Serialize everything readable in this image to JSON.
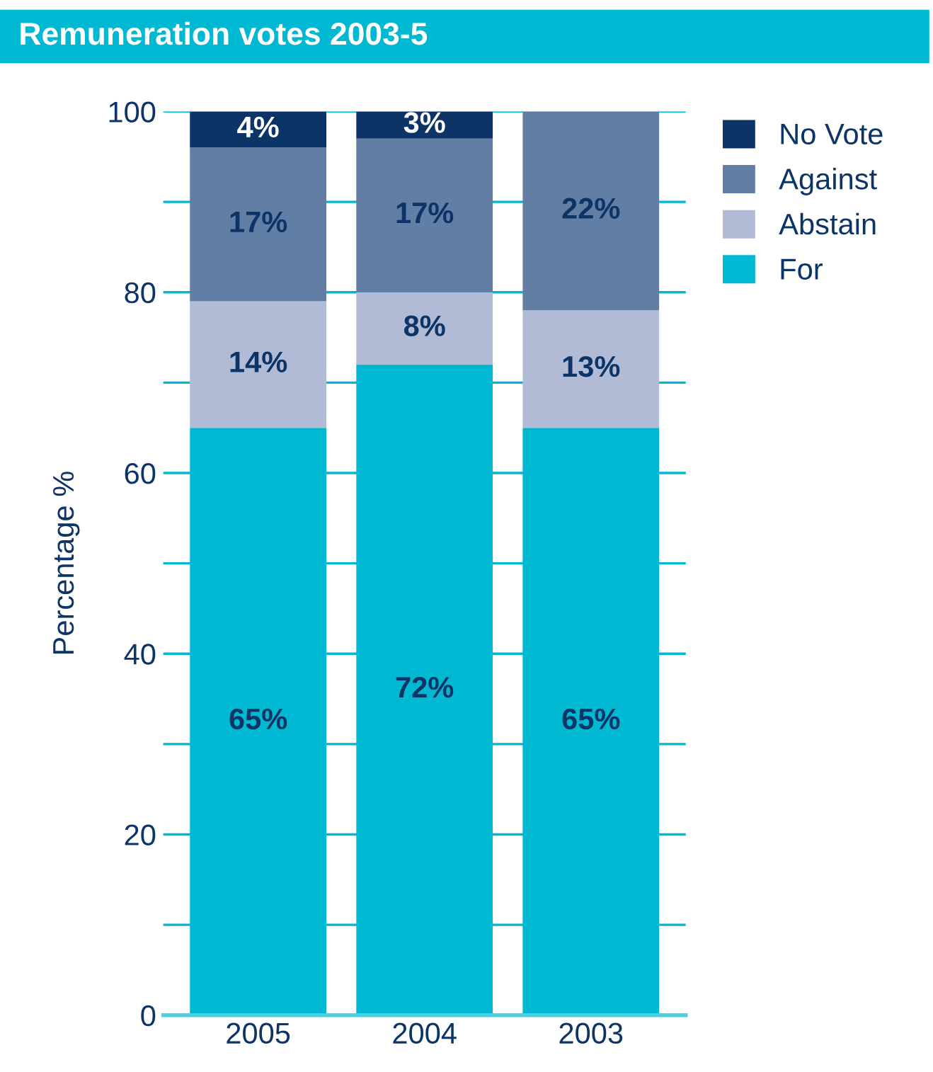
{
  "chart_data": {
    "type": "bar",
    "title": "Remuneration votes 2003-5",
    "ylabel": "Percentage %",
    "categories": [
      "2005",
      "2004",
      "2003"
    ],
    "stacked": true,
    "series": [
      {
        "name": "For",
        "color": "#00b8d1",
        "values": [
          65,
          72,
          65
        ],
        "value_labels": [
          "65%",
          "72%",
          "65%"
        ]
      },
      {
        "name": "Abstain",
        "color": "#b1bbd5",
        "values": [
          14,
          8,
          13
        ],
        "value_labels": [
          "14%",
          "8%",
          "13%"
        ]
      },
      {
        "name": "Against",
        "color": "#627ea4",
        "values": [
          17,
          17,
          22
        ],
        "value_labels": [
          "17%",
          "17%",
          "22%"
        ]
      },
      {
        "name": "No Vote",
        "color": "#0d3466",
        "values": [
          4,
          3,
          0
        ],
        "value_labels": [
          "4%",
          "3%",
          null
        ]
      }
    ],
    "ylim": [
      0,
      100
    ],
    "yticks": [
      0,
      {
        "value": 10,
        "label": null
      },
      20,
      {
        "value": 30,
        "label": null
      },
      40,
      {
        "value": 50,
        "label": null
      },
      60,
      {
        "value": 70,
        "label": null
      },
      80,
      {
        "value": 90,
        "label": null
      },
      100
    ],
    "grid": "y",
    "legend": "top right"
  }
}
